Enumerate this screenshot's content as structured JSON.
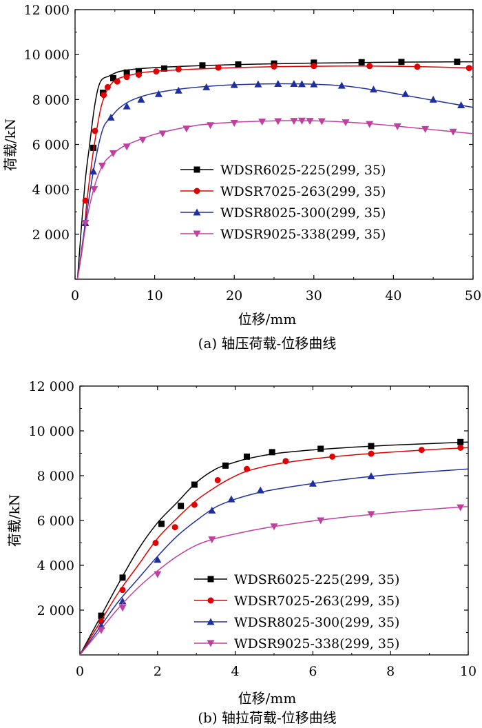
{
  "chart_data": [
    {
      "type": "line",
      "caption": "(a) 轴压荷载-位移曲线",
      "xlabel": "位移/mm",
      "ylabel": "荷载/kN",
      "xlim": [
        0,
        50
      ],
      "ylim": [
        0,
        12000
      ],
      "xticks": [
        0,
        10,
        20,
        30,
        40,
        50
      ],
      "yticks": [
        2000,
        4000,
        6000,
        8000,
        10000,
        12000
      ],
      "xtick_labels": [
        "0",
        "10",
        "20",
        "30",
        "40",
        "50"
      ],
      "ytick_labels": [
        "2 000",
        "4 000",
        "6 000",
        "8 000",
        "10 000",
        "12 000"
      ],
      "grid": false,
      "legend_position": "center-right",
      "series": [
        {
          "name": "WDSR6025-225(299, 35)",
          "color": "#000000",
          "marker": "square",
          "x": [
            0.3,
            1.2,
            1.8,
            2.5,
            3.2,
            4.3,
            5.6,
            7.5,
            10,
            13,
            16,
            20,
            25,
            30,
            35,
            40,
            45,
            50
          ],
          "y": [
            0,
            4100,
            5900,
            7800,
            8800,
            9050,
            9250,
            9350,
            9420,
            9470,
            9510,
            9550,
            9590,
            9620,
            9640,
            9660,
            9670,
            9680
          ],
          "markers_x": [
            2.3,
            3.5,
            4.8,
            6.5,
            8.0,
            11.2,
            16.0,
            20.5,
            25.0,
            30.0,
            36.0,
            41.0,
            48.0
          ],
          "markers_y": [
            5850,
            8300,
            8950,
            9200,
            9260,
            9380,
            9520,
            9560,
            9600,
            9640,
            9660,
            9670,
            9680
          ]
        },
        {
          "name": "WDSR7025-263(299, 35)",
          "color": "#e00000",
          "marker": "circle",
          "x": [
            0.3,
            1.0,
            1.5,
            2.1,
            2.7,
            3.3,
            4.0,
            5.0,
            6.5,
            8.5,
            11,
            15,
            20,
            25,
            30,
            35,
            40,
            45,
            50
          ],
          "y": [
            0,
            1600,
            3500,
            5200,
            6600,
            7700,
            8400,
            8850,
            9050,
            9200,
            9280,
            9350,
            9420,
            9460,
            9480,
            9490,
            9480,
            9450,
            9400
          ],
          "markers_x": [
            1.3,
            2.5,
            3.6,
            4.1,
            5.3,
            6.5,
            8.0,
            10.2,
            13.0,
            18.0,
            25.0,
            30.0,
            37.0,
            43.0,
            49.5
          ],
          "markers_y": [
            3500,
            6600,
            8200,
            8550,
            8800,
            9000,
            9100,
            9250,
            9350,
            9420,
            9470,
            9490,
            9490,
            9460,
            9400
          ]
        },
        {
          "name": "WDSR8025-300(299, 35)",
          "color": "#1f2f9f",
          "marker": "triangle-up",
          "x": [
            0.3,
            1.5,
            2.5,
            3.5,
            4.5,
            5.5,
            7,
            9,
            11,
            14,
            18,
            22,
            26,
            30,
            34,
            38,
            42,
            46,
            50
          ],
          "y": [
            0,
            3000,
            5200,
            6700,
            7200,
            7600,
            7950,
            8200,
            8350,
            8500,
            8620,
            8680,
            8700,
            8680,
            8600,
            8400,
            8150,
            7900,
            7650
          ],
          "markers_x": [
            1.3,
            2.3,
            4.5,
            6.5,
            8.3,
            10.5,
            13.0,
            16.5,
            20.0,
            23.0,
            25.5,
            27.5,
            28.5,
            30.0,
            33.5,
            37.5,
            41.5,
            45.0,
            48.5
          ],
          "markers_y": [
            2500,
            4800,
            7200,
            7700,
            8000,
            8250,
            8400,
            8550,
            8650,
            8680,
            8700,
            8700,
            8690,
            8680,
            8620,
            8450,
            8250,
            8000,
            7750
          ]
        },
        {
          "name": "WDSR9025-338(299, 35)",
          "color": "#c040a0",
          "marker": "triangle-down",
          "x": [
            0.3,
            1.5,
            2.5,
            3.5,
            4.5,
            6,
            8,
            10,
            13,
            16,
            20,
            24,
            28,
            32,
            36,
            40,
            44,
            48,
            50
          ],
          "y": [
            0,
            2700,
            4200,
            5100,
            5500,
            5900,
            6200,
            6450,
            6700,
            6880,
            6990,
            7040,
            7060,
            7030,
            6950,
            6830,
            6690,
            6550,
            6480
          ],
          "markers_x": [
            1.3,
            2.4,
            3.4,
            4.8,
            6.5,
            8.5,
            11.0,
            14.0,
            17.0,
            20.0,
            23.5,
            25.5,
            27.5,
            28.5,
            29.5,
            31.0,
            34.0,
            37.0,
            40.5,
            44.0,
            47.5
          ],
          "markers_y": [
            2500,
            4000,
            5050,
            5600,
            5900,
            6200,
            6480,
            6700,
            6850,
            6950,
            7010,
            7030,
            7040,
            7050,
            7040,
            7030,
            6980,
            6900,
            6800,
            6680,
            6560
          ]
        }
      ]
    },
    {
      "type": "line",
      "caption": "(b) 轴拉荷载-位移曲线",
      "xlabel": "位移/mm",
      "ylabel": "荷载/kN",
      "xlim": [
        0,
        10
      ],
      "ylim": [
        0,
        12000
      ],
      "xticks": [
        0,
        2,
        4,
        6,
        8,
        10
      ],
      "yticks": [
        2000,
        4000,
        6000,
        8000,
        10000,
        12000
      ],
      "xtick_labels": [
        "0",
        "2",
        "4",
        "6",
        "8",
        "10"
      ],
      "ytick_labels": [
        "2 000",
        "4 000",
        "6 000",
        "8 000",
        "10 000",
        "12 000"
      ],
      "grid": false,
      "legend_position": "bottom-right",
      "series": [
        {
          "name": "WDSR6025-225(299, 35)",
          "color": "#000000",
          "marker": "square",
          "x": [
            0,
            0.5,
            1.0,
            1.5,
            2.0,
            2.5,
            3.0,
            3.5,
            3.9,
            4.3,
            5.0,
            6.0,
            7.0,
            8.0,
            9.0,
            10.0
          ],
          "y": [
            0,
            1600,
            3200,
            4700,
            5900,
            6800,
            7700,
            8300,
            8550,
            8750,
            8980,
            9150,
            9270,
            9360,
            9430,
            9500
          ],
          "markers_x": [
            0.55,
            1.1,
            2.1,
            2.6,
            2.95,
            3.75,
            4.3,
            4.95,
            6.2,
            7.5,
            9.8
          ],
          "markers_y": [
            1750,
            3450,
            5850,
            6650,
            7600,
            8450,
            8850,
            9050,
            9200,
            9320,
            9500
          ]
        },
        {
          "name": "WDSR7025-263(299, 35)",
          "color": "#e00000",
          "marker": "circle",
          "x": [
            0,
            0.5,
            1.0,
            1.5,
            2.0,
            2.5,
            3.0,
            3.5,
            3.9,
            4.3,
            5.0,
            6.0,
            7.0,
            8.0,
            9.0,
            10.0
          ],
          "y": [
            0,
            1400,
            2800,
            4000,
            5200,
            6100,
            6900,
            7500,
            7900,
            8200,
            8500,
            8750,
            8920,
            9050,
            9160,
            9250
          ],
          "markers_x": [
            0.55,
            1.1,
            1.95,
            2.45,
            2.95,
            3.55,
            4.3,
            5.3,
            6.5,
            7.5,
            8.8,
            9.8
          ],
          "markers_y": [
            1500,
            2900,
            5000,
            5700,
            6700,
            7800,
            8300,
            8650,
            8850,
            8980,
            9150,
            9250
          ]
        },
        {
          "name": "WDSR8025-300(299, 35)",
          "color": "#1f2f9f",
          "marker": "triangle-up",
          "x": [
            0,
            0.5,
            1.0,
            1.5,
            2.0,
            2.5,
            3.0,
            3.5,
            4.0,
            4.5,
            5.0,
            6.0,
            7.0,
            8.0,
            9.0,
            10.0
          ],
          "y": [
            0,
            1200,
            2400,
            3400,
            4400,
            5300,
            6000,
            6600,
            6950,
            7200,
            7380,
            7650,
            7870,
            8050,
            8180,
            8300
          ],
          "markers_x": [
            0.55,
            1.1,
            2.0,
            3.4,
            3.9,
            4.65,
            6.0,
            7.5
          ],
          "markers_y": [
            1300,
            2400,
            4250,
            6450,
            6950,
            7350,
            7650,
            7980
          ]
        },
        {
          "name": "WDSR9025-338(299, 35)",
          "color": "#c040a0",
          "marker": "triangle-down",
          "x": [
            0,
            0.5,
            1.0,
            1.5,
            2.0,
            2.5,
            3.0,
            3.5,
            4.0,
            4.5,
            5.0,
            6.0,
            7.0,
            8.0,
            9.0,
            10.0
          ],
          "y": [
            0,
            1050,
            2100,
            3000,
            3750,
            4400,
            4900,
            5200,
            5400,
            5580,
            5730,
            5980,
            6180,
            6350,
            6500,
            6620
          ],
          "markers_x": [
            0.55,
            1.1,
            2.0,
            3.4,
            5.0,
            6.2,
            7.5,
            9.8
          ],
          "markers_y": [
            1100,
            2100,
            3600,
            5150,
            5730,
            6000,
            6280,
            6580
          ]
        }
      ]
    }
  ]
}
